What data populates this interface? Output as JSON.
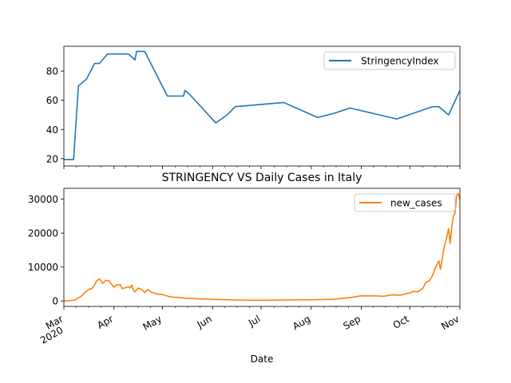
{
  "chart_data": [
    {
      "type": "line",
      "x_start": "2020-03-01",
      "x_end": "2020-11-01",
      "x": [
        "2020-03-01",
        "2020-03-07",
        "2020-03-08",
        "2020-03-10",
        "2020-03-15",
        "2020-03-20",
        "2020-03-23",
        "2020-03-28",
        "2020-04-01",
        "2020-04-10",
        "2020-04-14",
        "2020-04-15",
        "2020-04-20",
        "2020-05-04",
        "2020-05-14",
        "2020-05-15",
        "2020-05-18",
        "2020-06-03",
        "2020-06-10",
        "2020-06-15",
        "2020-07-15",
        "2020-08-05",
        "2020-08-15",
        "2020-08-25",
        "2020-09-23",
        "2020-10-15",
        "2020-10-19",
        "2020-10-25",
        "2020-11-01"
      ],
      "series": [
        {
          "name": "StringencyIndex",
          "color": "#1f77b4",
          "values": [
            19.4,
            19.4,
            36.1,
            69.9,
            74.5,
            85.2,
            85.2,
            91.7,
            91.7,
            91.7,
            87.7,
            93.5,
            93.5,
            62.9,
            62.9,
            66.8,
            63.8,
            44.5,
            50.0,
            55.6,
            58.5,
            48.2,
            51.0,
            54.7,
            47.2,
            55.6,
            55.6,
            50.0,
            66.7
          ]
        }
      ],
      "xticks": [
        {
          "date": "2020-03-01",
          "label": [
            "Mar",
            "2020"
          ]
        },
        {
          "date": "2020-04-01",
          "label": [
            "Apr"
          ]
        },
        {
          "date": "2020-05-01",
          "label": [
            "May"
          ]
        },
        {
          "date": "2020-06-01",
          "label": [
            "Jun"
          ]
        },
        {
          "date": "2020-07-01",
          "label": [
            "Jul"
          ]
        },
        {
          "date": "2020-08-01",
          "label": [
            "Aug"
          ]
        },
        {
          "date": "2020-09-01",
          "label": [
            "Sep"
          ]
        },
        {
          "date": "2020-10-01",
          "label": [
            "Oct"
          ]
        },
        {
          "date": "2020-11-01",
          "label": [
            "Nov"
          ]
        }
      ],
      "yticks": [
        20,
        40,
        60,
        80
      ],
      "ylim": [
        15,
        97
      ],
      "grid": false,
      "legend": "top-right"
    },
    {
      "type": "line",
      "title": "STRINGENCY VS Daily Cases in Italy",
      "xlabel": "Date",
      "x_start": "2020-03-01",
      "x_end": "2020-11-01",
      "x": [
        "2020-03-01",
        "2020-03-05",
        "2020-03-08",
        "2020-03-10",
        "2020-03-12",
        "2020-03-14",
        "2020-03-16",
        "2020-03-17",
        "2020-03-18",
        "2020-03-20",
        "2020-03-21",
        "2020-03-23",
        "2020-03-25",
        "2020-03-26",
        "2020-03-27",
        "2020-03-28",
        "2020-03-29",
        "2020-03-30",
        "2020-04-01",
        "2020-04-03",
        "2020-04-04",
        "2020-04-05",
        "2020-04-06",
        "2020-04-08",
        "2020-04-10",
        "2020-04-11",
        "2020-04-12",
        "2020-04-13",
        "2020-04-14",
        "2020-04-16",
        "2020-04-18",
        "2020-04-19",
        "2020-04-20",
        "2020-04-22",
        "2020-04-24",
        "2020-04-26",
        "2020-04-28",
        "2020-05-01",
        "2020-05-05",
        "2020-05-08",
        "2020-05-12",
        "2020-05-15",
        "2020-05-20",
        "2020-05-25",
        "2020-05-31",
        "2020-06-10",
        "2020-06-20",
        "2020-07-01",
        "2020-07-15",
        "2020-08-01",
        "2020-08-15",
        "2020-08-25",
        "2020-09-01",
        "2020-09-10",
        "2020-09-15",
        "2020-09-20",
        "2020-09-25",
        "2020-10-01",
        "2020-10-03",
        "2020-10-06",
        "2020-10-09",
        "2020-10-11",
        "2020-10-13",
        "2020-10-15",
        "2020-10-17",
        "2020-10-18",
        "2020-10-19",
        "2020-10-20",
        "2020-10-21",
        "2020-10-22",
        "2020-10-24",
        "2020-10-25",
        "2020-10-26",
        "2020-10-27",
        "2020-10-28",
        "2020-10-29",
        "2020-10-30",
        "2020-10-31",
        "2020-11-01"
      ],
      "series": [
        {
          "name": "new_cases",
          "color": "#ff7f0e",
          "values": [
            0,
            100,
            300,
            900,
            1500,
            2500,
            3200,
            3600,
            3500,
            4700,
            5800,
            6500,
            5200,
            5600,
            6100,
            6000,
            5900,
            5200,
            4100,
            4800,
            4700,
            4800,
            3600,
            3900,
            4200,
            3800,
            4700,
            3200,
            2700,
            3800,
            3400,
            3000,
            2500,
            3400,
            2600,
            2300,
            2000,
            1900,
            1300,
            1100,
            1000,
            800,
            700,
            600,
            500,
            350,
            250,
            200,
            300,
            350,
            500,
            1000,
            1500,
            1500,
            1400,
            1800,
            1700,
            2400,
            2800,
            2700,
            3700,
            5500,
            5900,
            7400,
            10000,
            10900,
            11800,
            9300,
            12300,
            15200,
            19100,
            21300,
            17000,
            22000,
            25000,
            26000,
            31100,
            31700,
            29900
          ]
        }
      ],
      "xticks": [
        {
          "date": "2020-03-01",
          "label": [
            "Mar",
            "2020"
          ]
        },
        {
          "date": "2020-04-01",
          "label": [
            "Apr"
          ]
        },
        {
          "date": "2020-05-01",
          "label": [
            "May"
          ]
        },
        {
          "date": "2020-06-01",
          "label": [
            "Jun"
          ]
        },
        {
          "date": "2020-07-01",
          "label": [
            "Jul"
          ]
        },
        {
          "date": "2020-08-01",
          "label": [
            "Aug"
          ]
        },
        {
          "date": "2020-09-01",
          "label": [
            "Sep"
          ]
        },
        {
          "date": "2020-10-01",
          "label": [
            "Oct"
          ]
        },
        {
          "date": "2020-11-01",
          "label": [
            "Nov"
          ]
        }
      ],
      "yticks": [
        0,
        10000,
        20000,
        30000
      ],
      "ylim": [
        -1600,
        33200
      ],
      "grid": false,
      "legend": "top-right"
    }
  ]
}
